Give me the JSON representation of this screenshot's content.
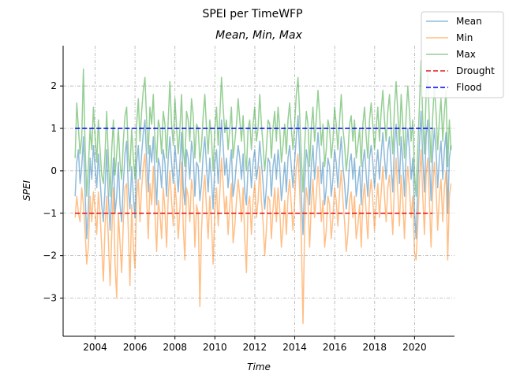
{
  "chart_data": {
    "type": "line",
    "title": "SPEI per TimeWFP",
    "subtitle": "Mean, Min, Max",
    "xlabel": "Time",
    "ylabel": "SPEI",
    "xlim": [
      2002.4,
      2022.0
    ],
    "ylim": [
      -3.9,
      2.95
    ],
    "x_ticks": [
      2004,
      2006,
      2008,
      2010,
      2012,
      2014,
      2016,
      2018,
      2020
    ],
    "x_tick_labels": [
      "2004",
      "2006",
      "2008",
      "2010",
      "2012",
      "2014",
      "2016",
      "2018",
      "2020"
    ],
    "y_ticks": [
      -3,
      -2,
      -1,
      0,
      1,
      2
    ],
    "y_tick_labels": [
      "−3",
      "−2",
      "−1",
      "0",
      "1",
      "2"
    ],
    "grid": true,
    "legend_position": "top-right",
    "series": [
      {
        "name": "Mean",
        "color": "#1f77b4",
        "opacity": 0.5,
        "style": "solid",
        "x_start": 2003.0,
        "x_step": 0.0833,
        "values": [
          -0.6,
          0.2,
          0.5,
          -0.3,
          0.1,
          0.8,
          -0.5,
          -1.6,
          -0.9,
          0.3,
          -0.2,
          0.6,
          0.1,
          -0.4,
          0.4,
          -0.2,
          -0.8,
          -1.2,
          -0.4,
          0.5,
          -0.6,
          -1.4,
          -0.5,
          0.3,
          -1.0,
          -0.6,
          0.2,
          -0.8,
          -1.2,
          -0.3,
          0.4,
          0.7,
          -0.4,
          -0.9,
          0.1,
          -0.6,
          -1.1,
          0.2,
          0.6,
          -0.2,
          0.4,
          0.9,
          1.2,
          0.3,
          -0.5,
          0.6,
          0.2,
          0.8,
          -0.1,
          -0.8,
          0.3,
          0.1,
          -0.4,
          0.5,
          0.2,
          -0.6,
          0.3,
          0.8,
          0.2,
          -0.3,
          0.6,
          0.1,
          -0.5,
          0.2,
          0.9,
          -0.4,
          -0.8,
          0.5,
          0.3,
          -0.2,
          0.7,
          0.4,
          -0.6,
          0.2,
          0.1,
          -0.7,
          -0.3,
          0.4,
          0.8,
          0.1,
          -0.5,
          0.3,
          -0.2,
          -0.9,
          0.2,
          0.5,
          -0.3,
          0.4,
          1.2,
          0.6,
          -0.1,
          0.3,
          -0.4,
          0.1,
          0.5,
          -0.6,
          -0.3,
          0.2,
          0.6,
          0.3,
          -0.2,
          0.4,
          -0.5,
          -0.8,
          0.1,
          0.3,
          -0.4,
          0.2,
          0.5,
          -0.2,
          0.1,
          0.7,
          0.2,
          -0.3,
          -0.9,
          -0.4,
          0.3,
          0.2,
          -0.6,
          0.1,
          0.4,
          -0.2,
          0.5,
          0.1,
          -0.7,
          -0.3,
          0.2,
          -0.5,
          0.3,
          0.6,
          0.1,
          -0.4,
          0.2,
          0.8,
          1.3,
          0.4,
          -0.6,
          -1.5,
          -0.3,
          0.5,
          0.2,
          -0.8,
          0.1,
          0.6,
          -0.2,
          0.3,
          0.9,
          0.4,
          -0.3,
          0.2,
          -0.8,
          -0.4,
          0.3,
          0.1,
          -0.6,
          -0.2,
          0.5,
          0.2,
          -0.4,
          0.3,
          0.8,
          0.1,
          -0.3,
          -0.9,
          -0.5,
          0.2,
          0.4,
          -0.2,
          0.3,
          -0.6,
          -0.3,
          0.1,
          -0.8,
          0.2,
          0.5,
          -0.1,
          -0.6,
          0.3,
          0.6,
          0.2,
          -0.4,
          0.1,
          0.5,
          -0.2,
          0.4,
          0.9,
          0.3,
          -0.2,
          0.5,
          0.8,
          0.1,
          -0.5,
          0.6,
          1.1,
          0.4,
          -0.3,
          0.8,
          0.2,
          -0.6,
          0.4,
          1.0,
          0.5,
          -0.2,
          0.3,
          -0.9,
          -1.6,
          -0.4,
          0.6,
          1.4,
          0.3,
          -0.5,
          0.8,
          1.2,
          0.2,
          -0.7,
          0.4,
          1.0,
          0.5,
          -0.4,
          0.3,
          0.7,
          -0.2,
          0.5,
          0.9,
          -1.0,
          0.3,
          0.6
        ]
      },
      {
        "name": "Min",
        "color": "#ff7f0e",
        "opacity": 0.5,
        "style": "solid",
        "x_start": 2003.0,
        "x_step": 0.0833,
        "values": [
          -1.1,
          -0.6,
          -1.0,
          -1.2,
          -0.4,
          -0.8,
          -1.4,
          -2.2,
          -1.8,
          -0.6,
          -1.2,
          -0.5,
          -0.9,
          -1.5,
          -0.5,
          -1.0,
          -1.8,
          -2.6,
          -1.3,
          -0.6,
          -1.6,
          -2.7,
          -1.5,
          -0.4,
          -2.2,
          -3.0,
          -1.0,
          -1.7,
          -2.4,
          -1.2,
          -0.4,
          -0.3,
          -1.4,
          -2.7,
          -0.8,
          -1.8,
          -2.3,
          -0.6,
          -0.2,
          -1.2,
          -0.4,
          0.1,
          0.4,
          -0.6,
          -1.6,
          -0.3,
          -0.8,
          0.1,
          -1.0,
          -1.9,
          -0.7,
          -1.0,
          -1.6,
          -0.4,
          -0.9,
          -1.8,
          -0.6,
          0.0,
          -0.7,
          -1.3,
          -0.3,
          -0.8,
          -1.6,
          -0.9,
          0.2,
          -1.3,
          -2.1,
          -0.4,
          -0.6,
          -1.2,
          -0.2,
          -0.5,
          -1.8,
          -0.8,
          -1.0,
          -3.2,
          -1.4,
          -0.5,
          -0.1,
          -0.9,
          -1.6,
          -0.6,
          -1.2,
          -2.2,
          -0.9,
          -0.4,
          -1.3,
          -0.5,
          0.3,
          -0.3,
          -1.0,
          -0.6,
          -1.5,
          -0.8,
          -0.3,
          -1.7,
          -1.3,
          -0.7,
          -0.2,
          -0.6,
          -1.2,
          -0.4,
          -1.6,
          -2.4,
          -0.8,
          -0.6,
          -1.5,
          -0.7,
          -0.3,
          -1.1,
          -0.7,
          0.1,
          -0.7,
          -1.2,
          -2.0,
          -1.4,
          -0.6,
          -0.7,
          -1.6,
          -0.9,
          -0.4,
          -1.2,
          -0.4,
          -0.9,
          -1.8,
          -1.3,
          -0.7,
          -1.5,
          -0.6,
          -0.2,
          -0.8,
          -1.4,
          -0.7,
          0.1,
          0.4,
          -0.5,
          -1.6,
          -3.6,
          -1.3,
          -0.4,
          -0.7,
          -1.8,
          -0.8,
          -0.2,
          -1.1,
          -0.6,
          0.1,
          -0.5,
          -1.2,
          -0.7,
          -1.8,
          -1.4,
          -0.6,
          -0.8,
          -1.6,
          -1.1,
          -0.4,
          -0.7,
          -1.3,
          -0.5,
          0.0,
          -0.7,
          -1.2,
          -1.9,
          -1.5,
          -0.7,
          -0.5,
          -1.1,
          -0.6,
          -1.6,
          -1.3,
          -0.8,
          -1.8,
          -0.7,
          -0.3,
          -1.0,
          -1.6,
          -0.6,
          -0.2,
          -0.7,
          -1.4,
          -0.8,
          -0.3,
          -1.1,
          -0.5,
          0.1,
          -0.6,
          -1.2,
          -0.4,
          -0.1,
          -0.8,
          -1.5,
          -0.3,
          0.3,
          -0.5,
          -1.3,
          -0.1,
          -0.7,
          -1.6,
          -0.5,
          0.1,
          -0.4,
          -1.1,
          -0.6,
          -1.9,
          -2.1,
          -1.3,
          -0.3,
          0.5,
          -0.6,
          -1.5,
          -0.1,
          0.3,
          -0.7,
          -1.8,
          -0.5,
          0.2,
          -0.4,
          -1.4,
          -0.6,
          -0.2,
          -1.2,
          -0.4,
          0.0,
          -2.1,
          -0.6,
          -0.3
        ]
      },
      {
        "name": "Max",
        "color": "#2ca02c",
        "opacity": 0.5,
        "style": "solid",
        "x_start": 2003.0,
        "x_step": 0.0833,
        "values": [
          0.3,
          1.6,
          1.0,
          0.4,
          0.8,
          2.4,
          0.6,
          -0.6,
          0.1,
          1.0,
          0.5,
          1.5,
          0.8,
          0.2,
          1.2,
          0.5,
          -0.1,
          -0.3,
          0.4,
          1.4,
          0.3,
          -0.6,
          0.5,
          1.2,
          -0.1,
          0.4,
          1.0,
          0.2,
          -0.2,
          0.7,
          1.3,
          1.5,
          0.4,
          0.0,
          1.0,
          0.3,
          -0.2,
          1.1,
          1.7,
          0.7,
          1.4,
          1.9,
          2.2,
          1.2,
          0.4,
          1.5,
          1.1,
          1.8,
          0.7,
          0.2,
          1.2,
          1.0,
          0.4,
          1.4,
          1.1,
          0.3,
          1.2,
          2.1,
          1.1,
          0.6,
          1.7,
          1.0,
          0.4,
          1.0,
          1.8,
          0.5,
          0.1,
          1.4,
          1.2,
          0.7,
          1.7,
          1.3,
          0.3,
          1.1,
          1.0,
          0.2,
          0.6,
          1.3,
          1.8,
          1.0,
          0.4,
          1.2,
          0.8,
          0.0,
          1.0,
          1.5,
          0.6,
          1.3,
          2.2,
          1.5,
          0.9,
          1.2,
          0.5,
          1.0,
          1.5,
          0.3,
          0.7,
          1.1,
          1.7,
          1.2,
          0.7,
          1.3,
          0.4,
          0.0,
          1.0,
          1.2,
          0.5,
          1.1,
          1.5,
          0.7,
          1.0,
          1.8,
          1.1,
          0.6,
          0.0,
          0.5,
          1.2,
          1.1,
          0.3,
          1.0,
          1.4,
          0.7,
          1.5,
          1.0,
          0.2,
          0.6,
          1.1,
          0.4,
          1.2,
          1.6,
          1.0,
          0.5,
          1.1,
          1.8,
          2.2,
          1.3,
          0.3,
          -0.5,
          0.6,
          1.4,
          1.1,
          0.1,
          1.0,
          1.5,
          0.7,
          1.2,
          1.9,
          1.3,
          0.6,
          1.1,
          0.1,
          0.5,
          1.2,
          1.0,
          0.3,
          0.7,
          1.5,
          1.1,
          0.5,
          1.2,
          1.8,
          1.0,
          0.6,
          0.0,
          0.4,
          1.1,
          1.3,
          0.7,
          1.2,
          0.3,
          0.6,
          1.0,
          0.1,
          1.1,
          1.5,
          0.8,
          0.3,
          1.2,
          1.6,
          1.1,
          0.5,
          1.0,
          1.5,
          0.7,
          1.4,
          1.9,
          1.2,
          0.7,
          1.4,
          1.8,
          1.0,
          0.4,
          1.5,
          2.1,
          1.4,
          0.6,
          1.8,
          1.1,
          0.3,
          1.3,
          2.0,
          1.4,
          0.7,
          1.2,
          0.0,
          -0.6,
          0.5,
          1.5,
          2.6,
          1.2,
          0.4,
          1.8,
          2.3,
          1.1,
          0.2,
          1.3,
          2.0,
          1.4,
          0.5,
          1.2,
          1.7,
          0.7,
          1.4,
          1.9,
          0.1,
          1.2,
          0.5
        ]
      },
      {
        "name": "Drought",
        "color": "#e41a1c",
        "style": "dashed",
        "x": [
          2003.0,
          2020.9
        ],
        "values": [
          -1,
          -1
        ]
      },
      {
        "name": "Flood",
        "color": "#0000ff",
        "style": "dashed",
        "x": [
          2003.0,
          2020.9
        ],
        "values": [
          1,
          1
        ]
      }
    ]
  }
}
